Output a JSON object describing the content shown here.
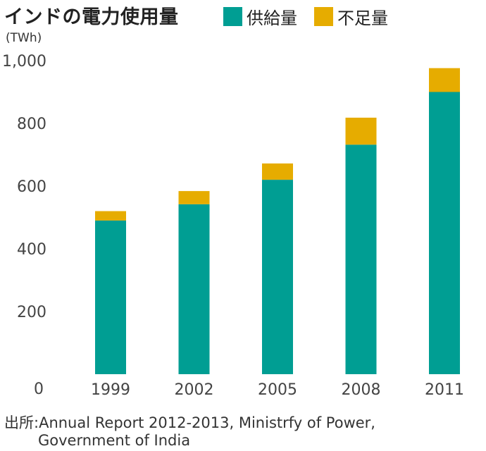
{
  "title": "インドの電力使用量",
  "unit_label": "(TWh)",
  "legend": [
    {
      "label": "供給量",
      "color": "#009e93"
    },
    {
      "label": "不足量",
      "color": "#e6ac00"
    }
  ],
  "source": {
    "line1": "出所:Annual Report 2012-2013, Ministrfy of Power,",
    "line2": "Government of India"
  },
  "chart_data": {
    "type": "bar",
    "stacked": true,
    "categories": [
      "1999",
      "2002",
      "2005",
      "2008",
      "2011"
    ],
    "series": [
      {
        "name": "供給量",
        "color": "#009e93",
        "values": [
          490,
          542,
          620,
          732,
          900
        ]
      },
      {
        "name": "不足量",
        "color": "#e6ac00",
        "values": [
          30,
          42,
          52,
          86,
          76
        ]
      }
    ],
    "y_ticks": [
      "0",
      "200",
      "400",
      "600",
      "800",
      "1,000"
    ],
    "ylim": [
      0,
      1000
    ],
    "grid": false
  }
}
